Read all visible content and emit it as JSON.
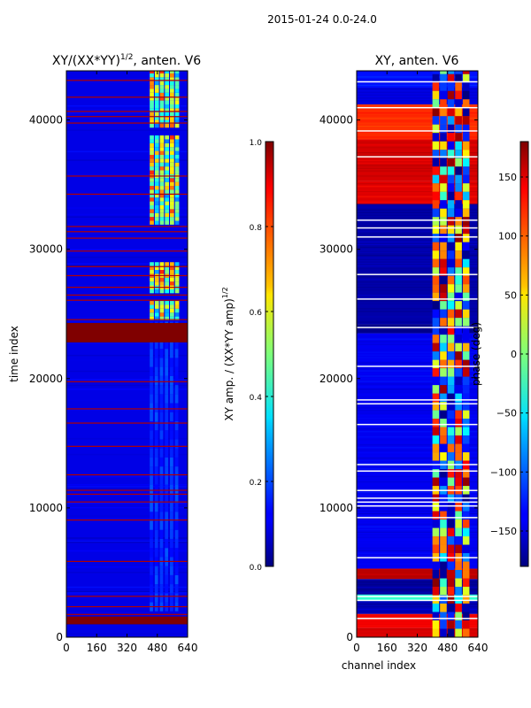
{
  "figure": {
    "suptitle": "2015-01-24 0.0-24.0"
  },
  "chart_data": [
    {
      "type": "heatmap",
      "title": "XY/(XX*YY)^1/2, anten. V6",
      "title_main": "XY/(XX*YY)",
      "title_sup": "1/2",
      "title_tail": ", anten. V6",
      "xlabel": "",
      "ylabel": "time index",
      "xlim": [
        0,
        640
      ],
      "ylim": [
        0,
        43800
      ],
      "xticks": [
        0,
        160,
        320,
        480,
        640
      ],
      "yticks": [
        0,
        10000,
        20000,
        30000,
        40000
      ],
      "ytick_labels": [
        "0",
        "10000",
        "20000",
        "30000",
        "40000"
      ],
      "colorbar": {
        "label": "XY amp. / (XX*YY amp)^1/2",
        "label_main": "XY amp. / (XX*YY amp)",
        "label_sup": "1/2",
        "range": [
          0.0,
          1.0
        ],
        "ticks": [
          0.0,
          0.2,
          0.4,
          0.6,
          0.8,
          1.0
        ],
        "tick_labels": [
          "0.0",
          "0.2",
          "0.4",
          "0.6",
          "0.8",
          "1.0"
        ]
      },
      "background_value": 0.1,
      "saturated_time_bands": [
        [
          1000,
          1600
        ],
        [
          22800,
          24300
        ]
      ],
      "thin_high_rows": [
        1800,
        2400,
        3200,
        5900,
        9100,
        10500,
        11100,
        11400,
        12600,
        14800,
        16600,
        17700,
        19800,
        24600,
        26100,
        26500,
        27100,
        28000,
        28700,
        29900,
        30900,
        31400,
        31800,
        34300,
        35700,
        39800,
        40300,
        40700,
        41800,
        43100
      ],
      "signal_channel_range": [
        440,
        600
      ],
      "bright_time_spans": [
        [
          24500,
          26000
        ],
        [
          26600,
          28900
        ],
        [
          31900,
          38800
        ],
        [
          39400,
          43800
        ]
      ]
    },
    {
      "type": "heatmap",
      "title": "XY, anten. V6",
      "xlabel": "channel index",
      "ylabel": "",
      "xlim": [
        0,
        640
      ],
      "ylim": [
        0,
        43800
      ],
      "xticks": [
        0,
        160,
        320,
        480,
        640
      ],
      "yticks": [
        0,
        10000,
        20000,
        30000,
        40000
      ],
      "ytick_labels": [
        "0",
        "10000",
        "20000",
        "30000",
        "40000"
      ],
      "colorbar": {
        "label": "phase (deg)",
        "range": [
          -180,
          180
        ],
        "ticks": [
          -150,
          -100,
          -50,
          0,
          50,
          100,
          150
        ],
        "tick_labels": [
          "−150",
          "−100",
          "−50",
          "0",
          "50",
          "100",
          "150"
        ]
      },
      "bands": [
        {
          "t0": 0,
          "t1": 700,
          "value": 150
        },
        {
          "t0": 700,
          "t1": 1800,
          "value": 140
        },
        {
          "t0": 1800,
          "t1": 2800,
          "value": -160
        },
        {
          "t0": 2800,
          "t1": 3300,
          "value": -30
        },
        {
          "t0": 3300,
          "t1": 4500,
          "value": -170
        },
        {
          "t0": 4500,
          "t1": 5300,
          "value": 160
        },
        {
          "t0": 5300,
          "t1": 23500,
          "value": -140
        },
        {
          "t0": 23500,
          "t1": 24200,
          "value": -175
        },
        {
          "t0": 24200,
          "t1": 33500,
          "value": -165
        },
        {
          "t0": 33500,
          "t1": 35300,
          "value": 145
        },
        {
          "t0": 35300,
          "t1": 38500,
          "value": 150
        },
        {
          "t0": 38500,
          "t1": 41200,
          "value": 120
        },
        {
          "t0": 41200,
          "t1": 42500,
          "value": -150
        },
        {
          "t0": 42500,
          "t1": 43800,
          "value": -130
        }
      ],
      "signal_channel_range": [
        400,
        600
      ],
      "white_rows": [
        1500,
        2900,
        3200,
        6200,
        9300,
        10200,
        10500,
        10800,
        11400,
        12900,
        13400,
        16500,
        18100,
        18400,
        21000,
        24000,
        26200,
        28100,
        31000,
        31700,
        32300,
        37200,
        39200,
        41000,
        43000
      ]
    }
  ]
}
